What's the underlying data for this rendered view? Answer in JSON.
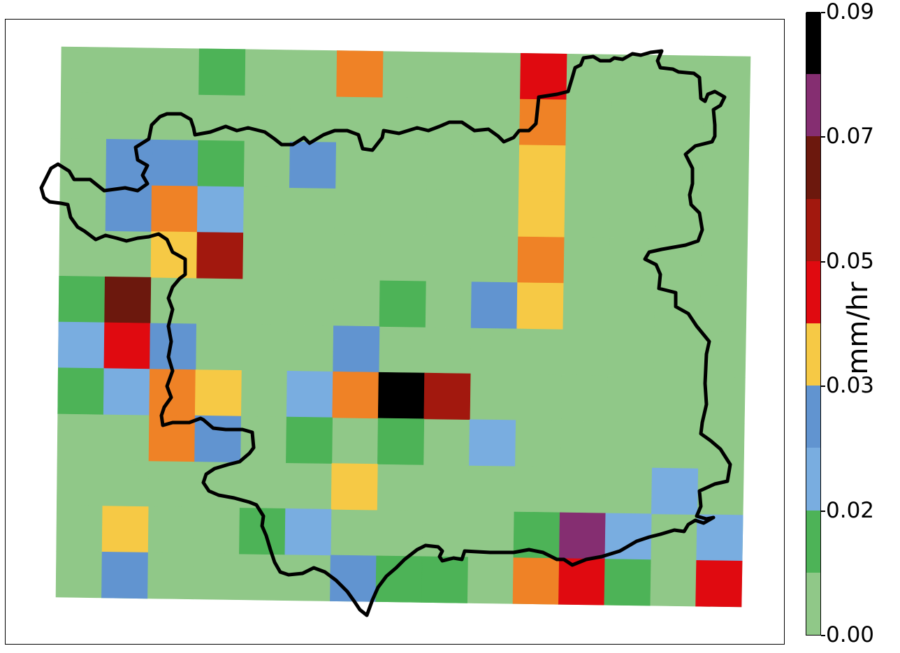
{
  "colorbar": {
    "title": "mm/hr",
    "tick_labels": [
      "0.09",
      "0.07",
      "0.05",
      "0.03",
      "0.02",
      "0.00"
    ],
    "colors": [
      "#90c888",
      "#4db357",
      "#79ade0",
      "#6194d0",
      "#f6c945",
      "#e00a10",
      "#a2180e",
      "#6c180d",
      "#852e71",
      "#000000"
    ]
  },
  "map_data": {
    "type": "heatmap",
    "rows": 12,
    "cols": 15,
    "background_color": "#90c888",
    "cells": [
      {
        "row": 0,
        "col": 3,
        "color": "#4db357"
      },
      {
        "row": 0,
        "col": 6,
        "color": "#ef8226"
      },
      {
        "row": 0,
        "col": 10,
        "color": "#e00a10"
      },
      {
        "row": 1,
        "col": 10,
        "color": "#ef8226"
      },
      {
        "row": 2,
        "col": 1,
        "color": "#6194d0"
      },
      {
        "row": 2,
        "col": 2,
        "color": "#6194d0"
      },
      {
        "row": 2,
        "col": 3,
        "color": "#4db357"
      },
      {
        "row": 2,
        "col": 5,
        "color": "#6194d0"
      },
      {
        "row": 2,
        "col": 10,
        "color": "#f6c945"
      },
      {
        "row": 3,
        "col": 1,
        "color": "#6194d0"
      },
      {
        "row": 3,
        "col": 2,
        "color": "#ef8226"
      },
      {
        "row": 3,
        "col": 3,
        "color": "#79ade0"
      },
      {
        "row": 3,
        "col": 10,
        "color": "#f6c945"
      },
      {
        "row": 4,
        "col": 2,
        "color": "#f6c945"
      },
      {
        "row": 4,
        "col": 3,
        "color": "#a2180e"
      },
      {
        "row": 4,
        "col": 10,
        "color": "#ef8226"
      },
      {
        "row": 5,
        "col": 0,
        "color": "#4db357"
      },
      {
        "row": 5,
        "col": 1,
        "color": "#6c180d"
      },
      {
        "row": 5,
        "col": 7,
        "color": "#4db357"
      },
      {
        "row": 5,
        "col": 9,
        "color": "#6194d0"
      },
      {
        "row": 5,
        "col": 10,
        "color": "#f6c945"
      },
      {
        "row": 6,
        "col": 0,
        "color": "#79ade0"
      },
      {
        "row": 6,
        "col": 1,
        "color": "#e00a10"
      },
      {
        "row": 6,
        "col": 2,
        "color": "#6194d0"
      },
      {
        "row": 6,
        "col": 6,
        "color": "#6194d0"
      },
      {
        "row": 7,
        "col": 0,
        "color": "#4db357"
      },
      {
        "row": 7,
        "col": 1,
        "color": "#79ade0"
      },
      {
        "row": 7,
        "col": 2,
        "color": "#ef8226"
      },
      {
        "row": 7,
        "col": 3,
        "color": "#f6c945"
      },
      {
        "row": 7,
        "col": 5,
        "color": "#79ade0"
      },
      {
        "row": 7,
        "col": 6,
        "color": "#ef8226"
      },
      {
        "row": 7,
        "col": 7,
        "color": "#000000"
      },
      {
        "row": 7,
        "col": 8,
        "color": "#a2180e"
      },
      {
        "row": 8,
        "col": 2,
        "color": "#ef8226"
      },
      {
        "row": 8,
        "col": 3,
        "color": "#6194d0"
      },
      {
        "row": 8,
        "col": 5,
        "color": "#4db357"
      },
      {
        "row": 8,
        "col": 7,
        "color": "#4db357"
      },
      {
        "row": 8,
        "col": 9,
        "color": "#79ade0"
      },
      {
        "row": 9,
        "col": 6,
        "color": "#f6c945"
      },
      {
        "row": 9,
        "col": 13,
        "color": "#79ade0"
      },
      {
        "row": 10,
        "col": 1,
        "color": "#f6c945"
      },
      {
        "row": 10,
        "col": 4,
        "color": "#4db357"
      },
      {
        "row": 10,
        "col": 5,
        "color": "#79ade0"
      },
      {
        "row": 10,
        "col": 10,
        "color": "#4db357"
      },
      {
        "row": 10,
        "col": 11,
        "color": "#852e71"
      },
      {
        "row": 10,
        "col": 12,
        "color": "#79ade0"
      },
      {
        "row": 10,
        "col": 14,
        "color": "#79ade0"
      },
      {
        "row": 11,
        "col": 1,
        "color": "#6194d0"
      },
      {
        "row": 11,
        "col": 6,
        "color": "#6194d0"
      },
      {
        "row": 11,
        "col": 7,
        "color": "#4db357"
      },
      {
        "row": 11,
        "col": 8,
        "color": "#4db357"
      },
      {
        "row": 11,
        "col": 10,
        "color": "#ef8226"
      },
      {
        "row": 11,
        "col": 11,
        "color": "#e00a10"
      },
      {
        "row": 11,
        "col": 12,
        "color": "#4db357"
      },
      {
        "row": 11,
        "col": 14,
        "color": "#e00a10"
      }
    ],
    "boundary_color": "#000000"
  }
}
